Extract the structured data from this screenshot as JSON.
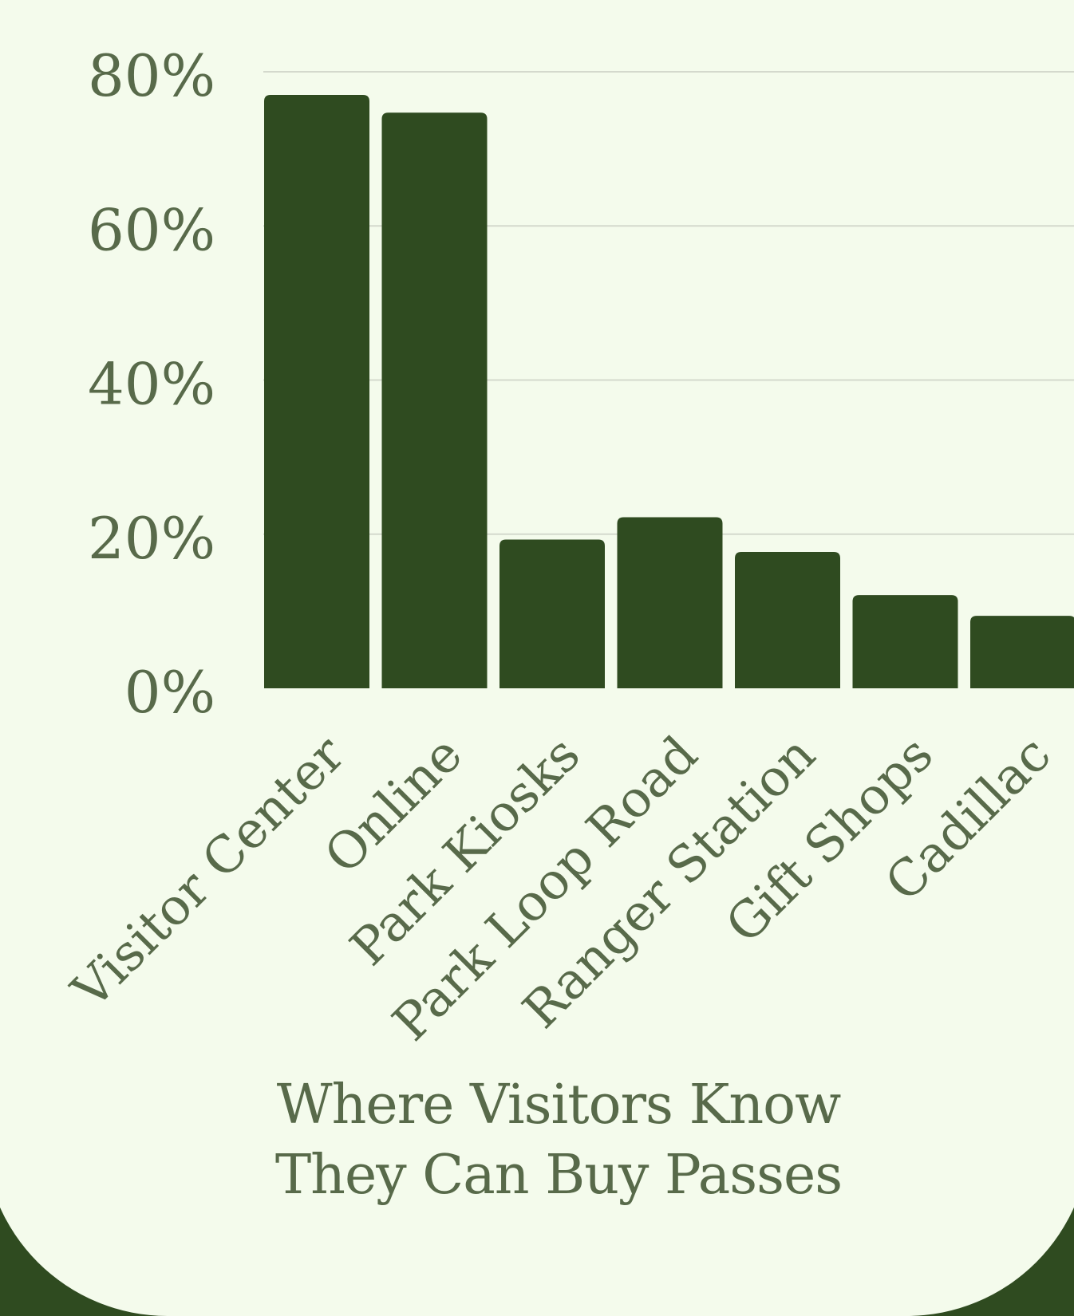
{
  "colors": {
    "frame": "#2f4b20",
    "background": "#f4fbec",
    "bar": "#2f4b20",
    "text": "#586a4a",
    "gridline": "#d4d9cd"
  },
  "chart_data": {
    "type": "bar",
    "title_lines": [
      "Where Visitors Know",
      "They Can Buy Passes"
    ],
    "categories": [
      "Visitor Center",
      "Online",
      "Park Kiosks",
      "Park Loop Road",
      "Ranger Station",
      "Gift Shops",
      "Cadillac"
    ],
    "values": [
      77,
      74.7,
      19.3,
      22.2,
      17.7,
      12.1,
      9.4
    ],
    "yticks": [
      "0%",
      "20%",
      "40%",
      "60%",
      "80%"
    ],
    "ytick_values": [
      0,
      20,
      40,
      60,
      80
    ],
    "ylim": [
      0,
      80
    ],
    "grid": true,
    "legend": "none"
  }
}
